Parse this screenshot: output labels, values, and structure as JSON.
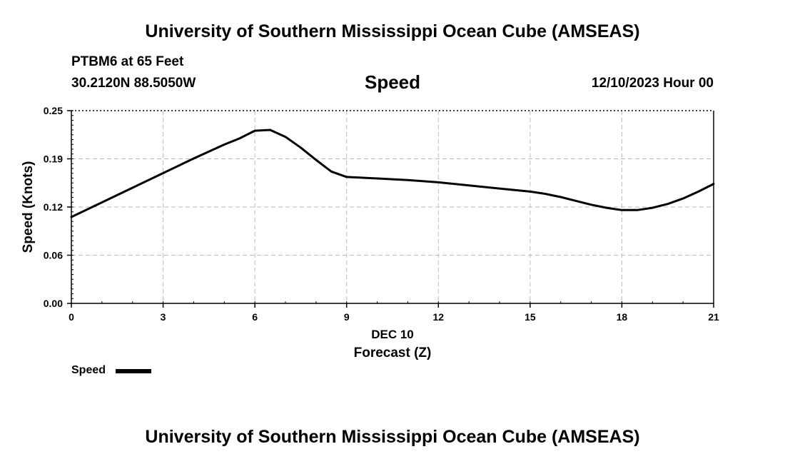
{
  "header": {
    "title": "University of Southern Mississippi Ocean Cube (AMSEAS)",
    "station": "PTBM6 at 65 Feet",
    "coordinates": "30.2120N  88.5050W",
    "variable": "Speed",
    "datetime": "12/10/2023 Hour 00"
  },
  "footer": {
    "title": "University of Southern Mississippi Ocean Cube (AMSEAS)"
  },
  "legend": {
    "label": "Speed"
  },
  "chart_data": {
    "type": "line",
    "title": "Speed",
    "xlabel": "Forecast (Z)",
    "xlabel_date": "DEC 10",
    "ylabel": "Speed (Knots)",
    "xlim": [
      0,
      21
    ],
    "ylim": [
      0,
      0.25
    ],
    "xticks": [
      0,
      3,
      6,
      9,
      12,
      15,
      18,
      21
    ],
    "xtick_labels": [
      "0",
      "3",
      "6",
      "9",
      "12",
      "15",
      "18",
      "21"
    ],
    "yticks": [
      0,
      0.0625,
      0.125,
      0.1875,
      0.25
    ],
    "ytick_labels": [
      "0.00",
      "0.06",
      "0.12",
      "0.19",
      "0.25"
    ],
    "grid": true,
    "line_color": "#000000",
    "grid_color": "#bbbbbb",
    "series": [
      {
        "name": "Speed",
        "x": [
          0,
          1,
          2,
          3,
          4,
          5,
          5.5,
          6,
          6.5,
          7,
          7.5,
          8,
          8.5,
          9,
          10,
          11,
          12,
          13,
          14,
          15,
          15.5,
          16,
          16.5,
          17,
          17.5,
          18,
          18.5,
          19,
          19.5,
          20,
          20.5,
          21
        ],
        "values": [
          0.112,
          0.131,
          0.15,
          0.169,
          0.188,
          0.206,
          0.214,
          0.224,
          0.225,
          0.216,
          0.202,
          0.186,
          0.171,
          0.164,
          0.162,
          0.16,
          0.157,
          0.153,
          0.149,
          0.145,
          0.142,
          0.138,
          0.133,
          0.128,
          0.124,
          0.121,
          0.121,
          0.124,
          0.129,
          0.136,
          0.145,
          0.155
        ]
      }
    ]
  }
}
